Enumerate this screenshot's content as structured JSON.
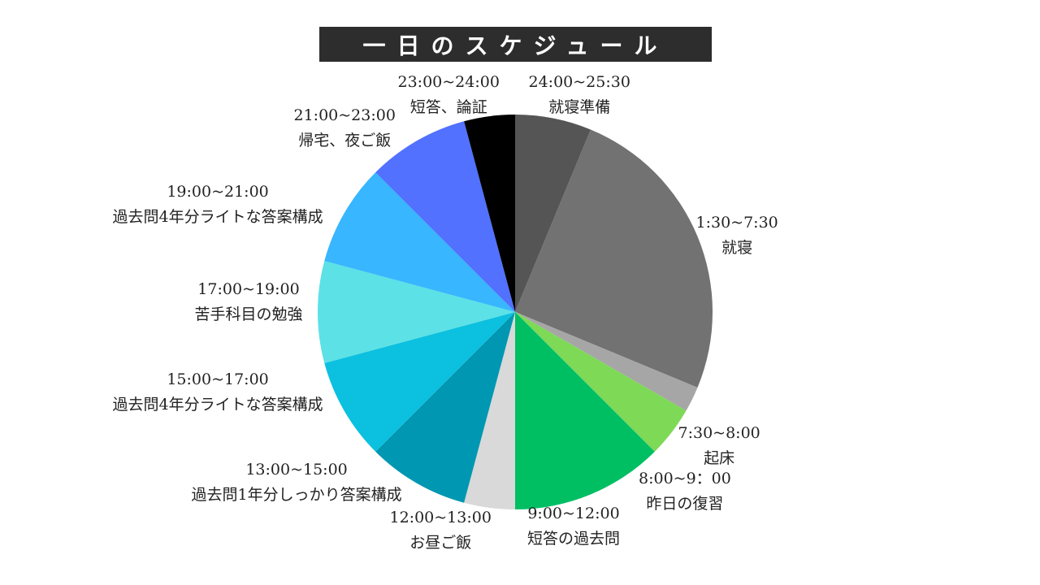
{
  "title": "一日のスケジュール",
  "chart_data": {
    "type": "pie",
    "title": "一日のスケジュール",
    "start_angle_deg": 0,
    "direction": "clockwise",
    "slices": [
      {
        "time": "24:00~25:30",
        "activity": "就寝準備",
        "hours": 1.5,
        "color": "#555555"
      },
      {
        "time": "1:30~7:30",
        "activity": "就寝",
        "hours": 6,
        "color": "#727272"
      },
      {
        "time": "7:30~8:00",
        "activity": "起床",
        "hours": 0.5,
        "color": "#a6a6a6"
      },
      {
        "time": "8:00~9：00",
        "activity": "昨日の復習",
        "hours": 1,
        "color": "#7ed957"
      },
      {
        "time": "9:00~12:00",
        "activity": "短答の過去問",
        "hours": 3,
        "color": "#00bf63"
      },
      {
        "time": "12:00~13:00",
        "activity": "お昼ご飯",
        "hours": 1,
        "color": "#d9d9d9"
      },
      {
        "time": "13:00~15:00",
        "activity": "過去問1年分しっかり答案構成",
        "hours": 2,
        "color": "#0097b2"
      },
      {
        "time": "15:00~17:00",
        "activity": "過去問4年分ライトな答案構成",
        "hours": 2,
        "color": "#0cc0df"
      },
      {
        "time": "17:00~19:00",
        "activity": "苦手科目の勉強",
        "hours": 2,
        "color": "#5ce1e6"
      },
      {
        "time": "19:00~21:00",
        "activity": "過去問4年分ライトな答案構成",
        "hours": 2,
        "color": "#38b6ff"
      },
      {
        "time": "21:00~23:00",
        "activity": "帰宅、夜ご飯",
        "hours": 2,
        "color": "#5271ff"
      },
      {
        "time": "23:00~24:00",
        "activity": "短答、論証",
        "hours": 1,
        "color": "#000000"
      }
    ]
  }
}
